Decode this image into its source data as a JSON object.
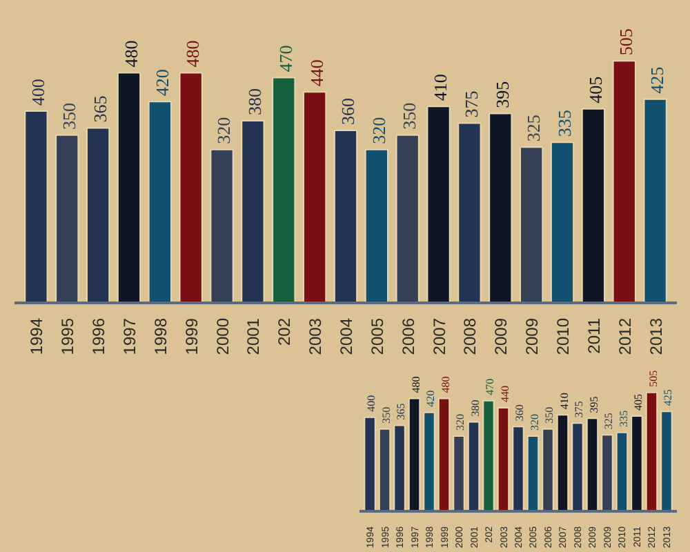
{
  "chart_data": [
    {
      "type": "bar",
      "categories": [
        "1994",
        "1995",
        "1996",
        "1997",
        "1998",
        "1999",
        "2000",
        "2001",
        "202",
        "2003",
        "2004",
        "2005",
        "2006",
        "2007",
        "2008",
        "2009",
        "2009",
        "2010",
        "2011",
        "2012",
        "2013"
      ],
      "values": [
        400,
        350,
        365,
        480,
        420,
        480,
        320,
        380,
        470,
        440,
        360,
        320,
        350,
        410,
        375,
        395,
        325,
        335,
        405,
        505,
        425
      ],
      "colors": [
        "#243352",
        "#353f56",
        "#243352",
        "#0f1726",
        "#13506f",
        "#7a1014",
        "#353f56",
        "#243352",
        "#16603e",
        "#7a1014",
        "#243352",
        "#13506f",
        "#353f56",
        "#0f1726",
        "#243352",
        "#0f1726",
        "#353f56",
        "#13506f",
        "#0f1726",
        "#7a1014",
        "#13506f"
      ],
      "data_labels": true
    },
    {
      "type": "bar",
      "categories": [
        "1994",
        "1995",
        "1996",
        "1997",
        "1998",
        "1999",
        "2000",
        "2001",
        "202",
        "2003",
        "2004",
        "2005",
        "2006",
        "2007",
        "2008",
        "2009",
        "2009",
        "2010",
        "2011",
        "2012",
        "2013"
      ],
      "values": [
        400,
        350,
        365,
        480,
        420,
        480,
        320,
        380,
        470,
        440,
        360,
        320,
        350,
        410,
        375,
        395,
        325,
        335,
        405,
        505,
        425
      ],
      "colors": [
        "#243352",
        "#353f56",
        "#243352",
        "#0f1726",
        "#13506f",
        "#7a1014",
        "#353f56",
        "#243352",
        "#16603e",
        "#7a1014",
        "#243352",
        "#13506f",
        "#353f56",
        "#0f1726",
        "#243352",
        "#0f1726",
        "#353f56",
        "#13506f",
        "#0f1726",
        "#7a1014",
        "#13506f"
      ],
      "data_labels": true
    }
  ]
}
